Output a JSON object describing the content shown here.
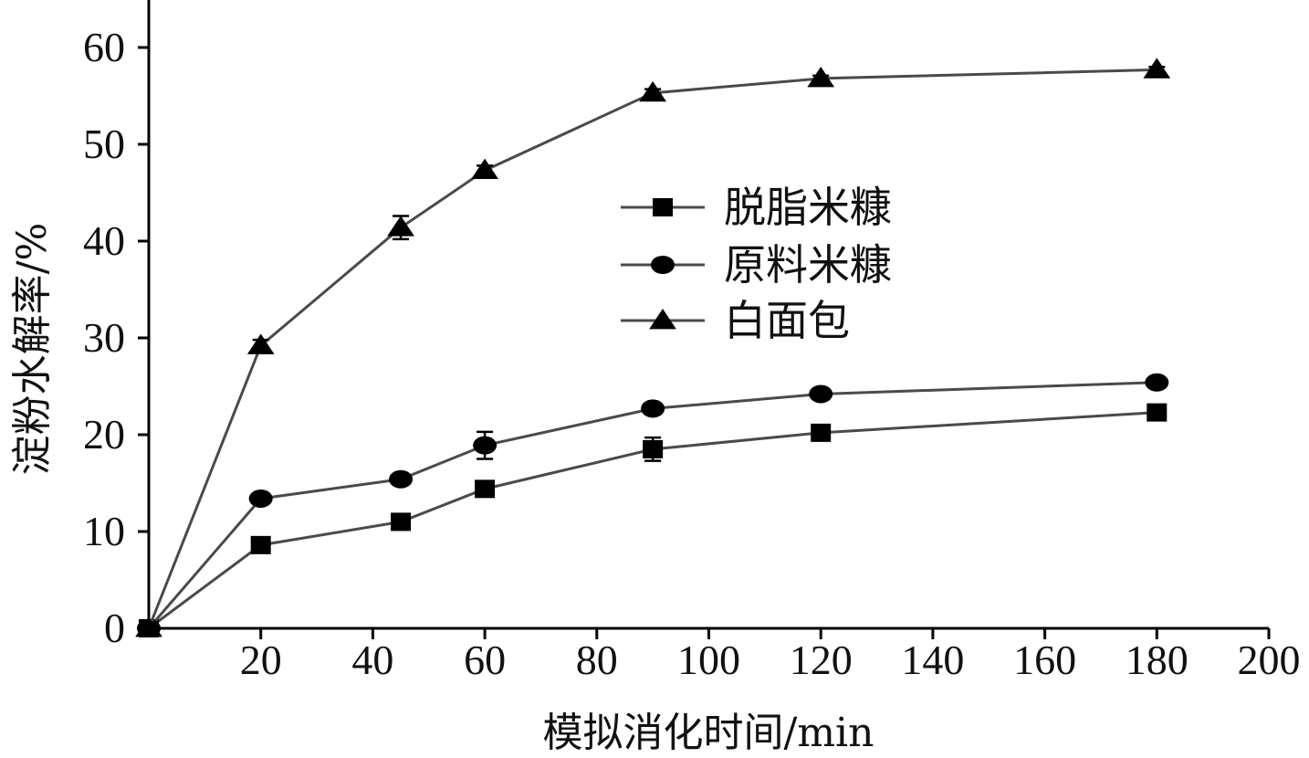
{
  "chart_data": {
    "type": "line",
    "xlabel": "模拟消化时间/min",
    "ylabel": "淀粉水解率/%",
    "xlim": [
      0,
      200
    ],
    "ylim": [
      0,
      65
    ],
    "x_ticks": [
      20,
      40,
      60,
      80,
      100,
      120,
      140,
      160,
      180,
      200
    ],
    "x_tick_labels": [
      "20",
      "40",
      "60",
      "80",
      "100",
      "120",
      "140",
      "160",
      "180",
      "200"
    ],
    "y_ticks": [
      0,
      10,
      20,
      30,
      40,
      50,
      60
    ],
    "y_tick_labels": [
      "0",
      "10",
      "20",
      "30",
      "40",
      "50",
      "60"
    ],
    "grid": false,
    "legend_position": "center",
    "x": [
      0,
      20,
      45,
      60,
      90,
      120,
      180
    ],
    "series": [
      {
        "name": "脱脂米糠",
        "marker": "square",
        "values": [
          0,
          8.6,
          11.0,
          14.4,
          18.5,
          20.2,
          22.3
        ],
        "errors": [
          0,
          0.3,
          0.3,
          0.4,
          1.2,
          0.3,
          0.4
        ]
      },
      {
        "name": "原料米糠",
        "marker": "circle",
        "values": [
          0,
          13.4,
          15.4,
          18.9,
          22.7,
          24.2,
          25.4
        ],
        "errors": [
          0,
          0.3,
          0.3,
          1.4,
          0.3,
          0.3,
          0.3
        ]
      },
      {
        "name": "白面包",
        "marker": "triangle",
        "values": [
          0,
          29.2,
          41.4,
          47.3,
          55.3,
          56.8,
          57.7
        ],
        "errors": [
          0,
          0.6,
          1.2,
          0.5,
          0.4,
          0.3,
          0.3
        ]
      }
    ],
    "colors": {
      "line": "#4a4a4a",
      "marker": "#000000",
      "axis": "#000000"
    }
  }
}
